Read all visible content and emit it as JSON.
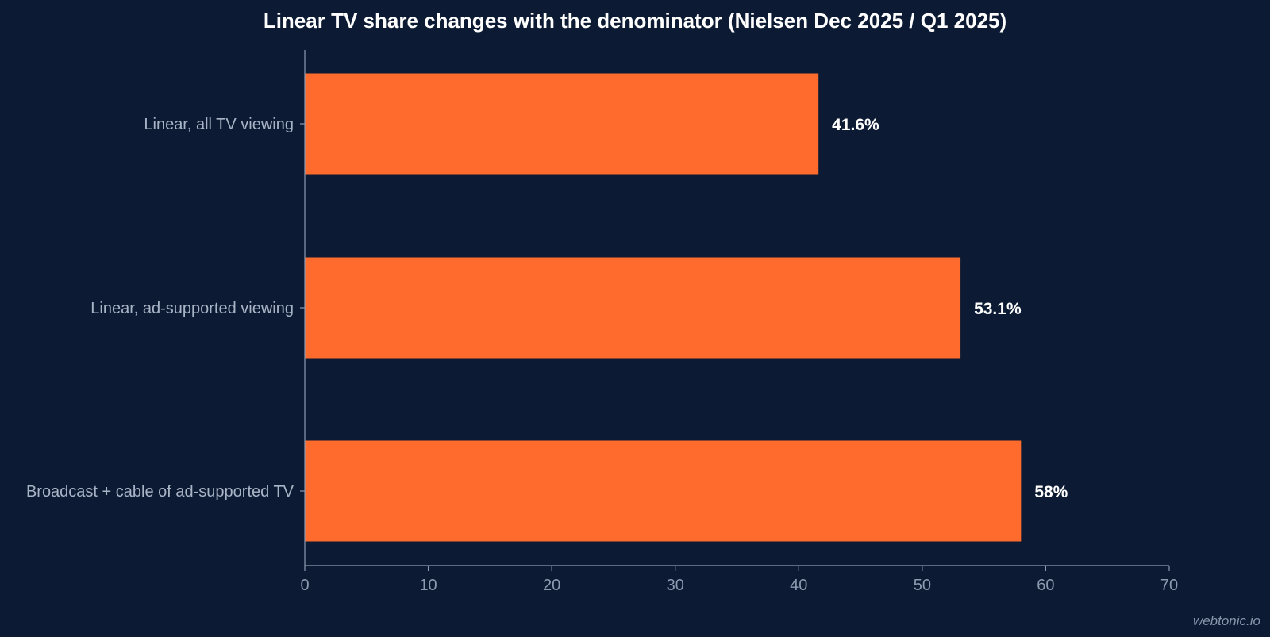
{
  "chart_data": {
    "type": "bar",
    "orientation": "horizontal",
    "title": "Linear TV share changes with the denominator (Nielsen Dec 2025 / Q1 2025)",
    "categories": [
      "Linear, all TV viewing",
      "Linear, ad-supported viewing",
      "Broadcast + cable of ad-supported TV"
    ],
    "values": [
      41.6,
      53.1,
      58
    ],
    "value_labels": [
      "41.6%",
      "53.1%",
      "58%"
    ],
    "xlim": [
      0,
      70
    ],
    "xticks": [
      0,
      10,
      20,
      30,
      40,
      50,
      60,
      70
    ],
    "xtick_labels": [
      "0",
      "10",
      "20",
      "30",
      "40",
      "50",
      "60",
      "70"
    ],
    "xlabel": "",
    "ylabel": "",
    "grid": false,
    "legend": "none",
    "bar_color": "#ff6b2d",
    "background_color": "#0c1b33",
    "axis_color": "#8e9ab0"
  },
  "watermark": "webtonic.io"
}
